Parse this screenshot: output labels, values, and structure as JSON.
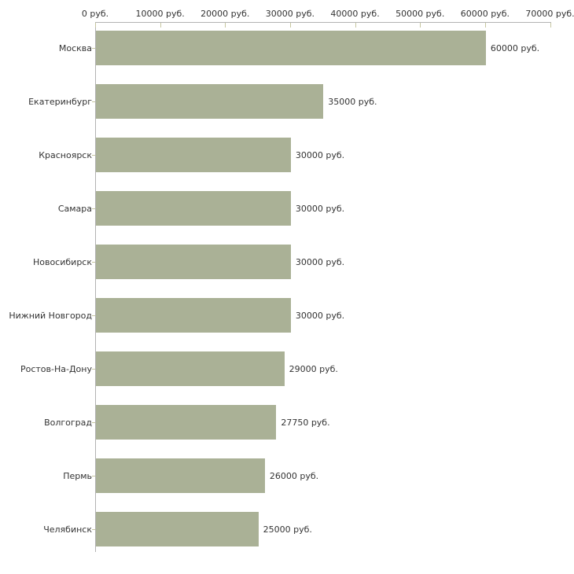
{
  "chart_data": {
    "type": "bar",
    "orientation": "horizontal",
    "title": "",
    "xlabel": "",
    "ylabel": "",
    "unit": "руб.",
    "categories": [
      "Москва",
      "Екатеринбург",
      "Красноярск",
      "Самара",
      "Новосибирск",
      "Нижний Новгород",
      "Ростов-На-Дону",
      "Волгоград",
      "Пермь",
      "Челябинск"
    ],
    "values": [
      60000,
      35000,
      30000,
      30000,
      30000,
      30000,
      29000,
      27750,
      26000,
      25000
    ],
    "bar_labels": [
      "60000 руб.",
      "35000 руб.",
      "30000 руб.",
      "30000 руб.",
      "30000 руб.",
      "30000 руб.",
      "29000 руб.",
      "27750 руб.",
      "26000 руб.",
      "25000 руб."
    ],
    "x_tick_values": [
      0,
      10000,
      20000,
      30000,
      40000,
      50000,
      60000,
      70000
    ],
    "x_tick_labels": [
      "0 руб.",
      "10000 руб.",
      "20000 руб.",
      "30000 руб.",
      "40000 руб.",
      "50000 руб.",
      "60000 руб.",
      "70000 руб."
    ],
    "xlim": [
      0,
      70000
    ],
    "grid": false,
    "legend": false,
    "colors": {
      "bar": "#aab196",
      "axis": "#b3b3b3",
      "tick": "#c6c6a0",
      "text": "#333333",
      "background": "#ffffff"
    }
  }
}
